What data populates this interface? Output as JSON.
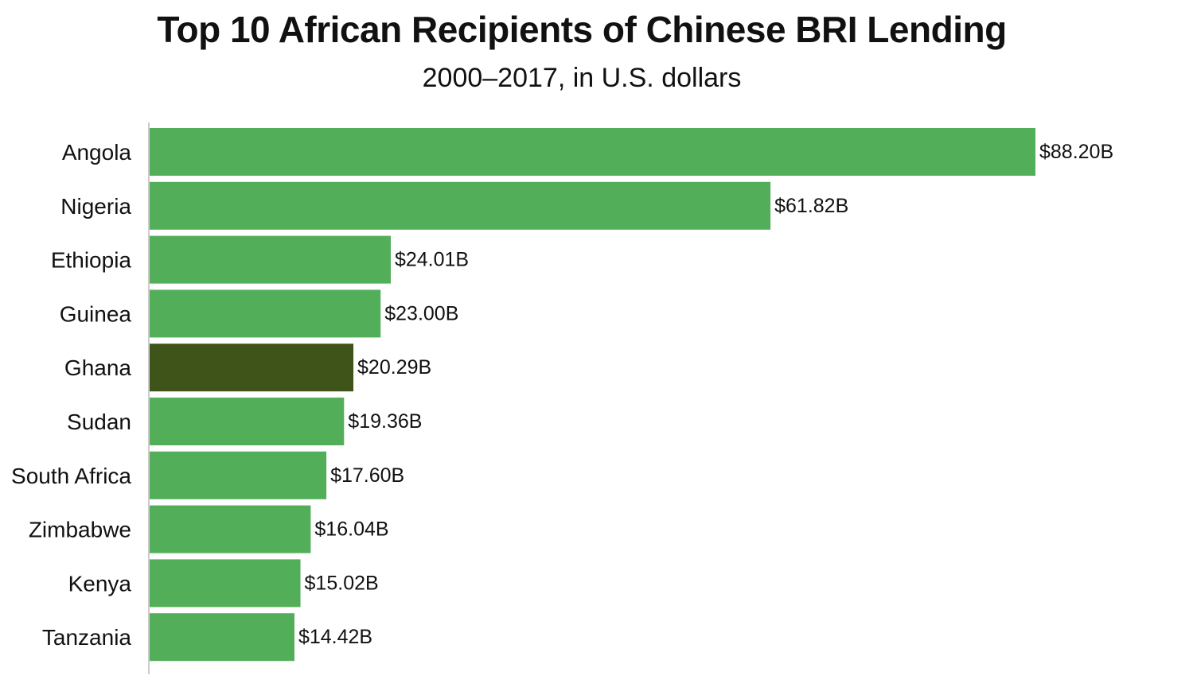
{
  "chart_data": {
    "type": "bar",
    "orientation": "horizontal",
    "title": "Top 10 African Recipients of Chinese BRI Lending",
    "subtitle": "2000–2017, in U.S. dollars",
    "xlabel": "",
    "ylabel": "",
    "categories": [
      "Angola",
      "Nigeria",
      "Ethiopia",
      "Guinea",
      "Ghana",
      "Sudan",
      "South Africa",
      "Zimbabwe",
      "Kenya",
      "Tanzania"
    ],
    "values": [
      88.2,
      61.82,
      24.01,
      23.0,
      20.29,
      19.36,
      17.6,
      16.04,
      15.02,
      14.42
    ],
    "value_labels": [
      "$88.20B",
      "$61.82B",
      "$24.01B",
      "$23.00B",
      "$20.29B",
      "$19.36B",
      "$17.60B",
      "$16.04B",
      "$15.02B",
      "$14.42B"
    ],
    "units": "B",
    "xlim": [
      0,
      88.2
    ],
    "grid": false,
    "legend": "none",
    "highlight_category": "Ghana",
    "colors": {
      "bar": "#53ae5a",
      "highlight": "#3e5418",
      "axis": "#cccccc"
    }
  }
}
